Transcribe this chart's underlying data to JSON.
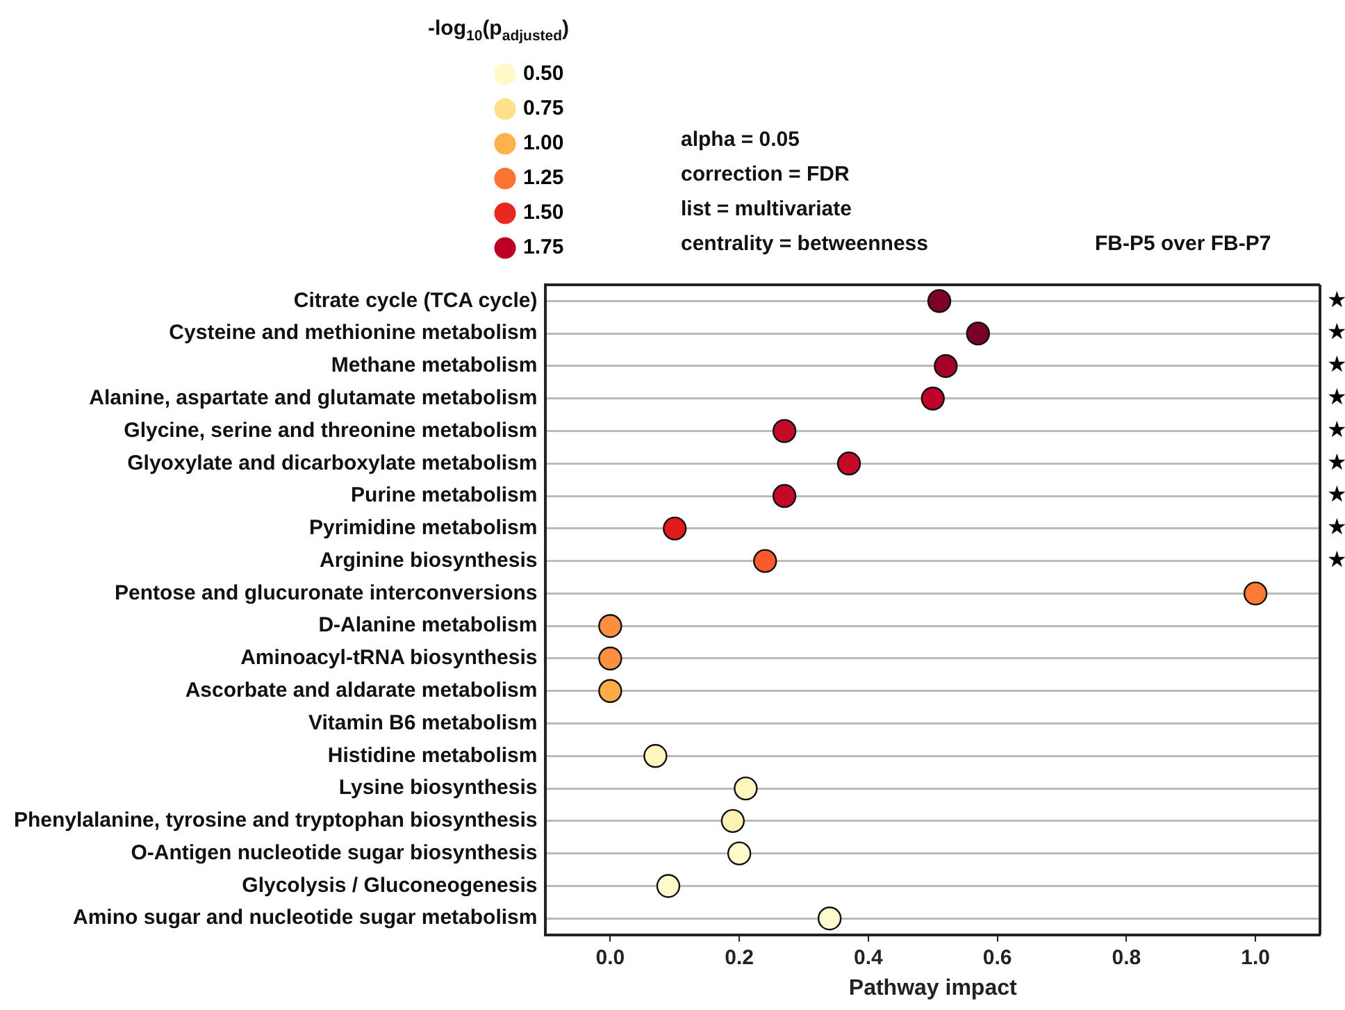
{
  "chart_data": {
    "type": "scatter",
    "title": "FB-P5 over FB-P7",
    "xlabel": "Pathway impact",
    "legend_title": "-log$_{10}$(p$_{adjusted}$)",
    "categories": [
      "Citrate cycle (TCA cycle)",
      "Cysteine and methionine metabolism",
      "Methane metabolism",
      "Alanine, aspartate and glutamate metabolism",
      "Glycine, serine and threonine metabolism",
      "Glyoxylate and dicarboxylate metabolism",
      "Purine metabolism",
      "Pyrimidine metabolism",
      "Arginine biosynthesis",
      "Pentose and glucuronate interconversions",
      "D-Alanine metabolism",
      "Aminoacyl-tRNA biosynthesis",
      "Ascorbate and aldarate metabolism",
      "Vitamin B6 metabolism",
      "Histidine metabolism",
      "Lysine biosynthesis",
      "Phenylalanine, tyrosine and tryptophan biosynthesis",
      "O-Antigen nucleotide sugar biosynthesis",
      "Glycolysis / Gluconeogenesis",
      "Amino sugar and nucleotide sugar metabolism"
    ],
    "orientation": "horizontal",
    "series": [
      {
        "name": "0.50",
        "color": "#fff8c8",
        "values": [
          null,
          null,
          null,
          null,
          null,
          null,
          null,
          null,
          null,
          null,
          null,
          null,
          null,
          null,
          0.07,
          0.21,
          0.19,
          0.2,
          0.09,
          0.34
        ],
        "colors": [
          null,
          null,
          null,
          null,
          null,
          null,
          null,
          null,
          null,
          null,
          null,
          null,
          null,
          null,
          "#fff5bf",
          "#fff5bf",
          "#fff2b5",
          "#fffbcc",
          "#fffbcc",
          "#fffdd0"
        ]
      },
      {
        "name": "0.75",
        "color": "#fee08b",
        "values": [
          null,
          null,
          null,
          null,
          null,
          null,
          null,
          null,
          null,
          null,
          null,
          null,
          null,
          null,
          null,
          null,
          null,
          null,
          null,
          null
        ]
      },
      {
        "name": "1.00",
        "color": "#feb14c",
        "values": [
          null,
          null,
          null,
          null,
          null,
          null,
          null,
          null,
          null,
          null,
          0,
          0,
          0,
          null,
          null,
          null,
          null,
          null,
          null,
          null
        ],
        "colors": [
          null,
          null,
          null,
          null,
          null,
          null,
          null,
          null,
          null,
          null,
          "#fd9040",
          "#fd9040",
          "#feab4a",
          null,
          null,
          null,
          null,
          null,
          null,
          null
        ]
      },
      {
        "name": "1.25",
        "color": "#fd7434",
        "values": [
          null,
          null,
          null,
          null,
          null,
          null,
          null,
          null,
          0.24,
          1.0,
          null,
          null,
          null,
          null,
          null,
          null,
          null,
          null,
          null,
          null
        ],
        "colors": [
          null,
          null,
          null,
          null,
          null,
          null,
          null,
          null,
          "#fc5a2a",
          "#fd7a35",
          null,
          null,
          null,
          null,
          null,
          null,
          null,
          null,
          null,
          null
        ]
      },
      {
        "name": "1.50",
        "color": "#e8291f",
        "values": [
          null,
          null,
          null,
          null,
          null,
          null,
          null,
          0.1,
          null,
          null,
          null,
          null,
          null,
          null,
          null,
          null,
          null,
          null,
          null,
          null
        ],
        "colors": [
          null,
          null,
          null,
          null,
          null,
          null,
          null,
          "#e31a1c",
          null,
          null,
          null,
          null,
          null,
          null,
          null,
          null,
          null,
          null,
          null,
          null
        ]
      },
      {
        "name": "1.75",
        "color": "#bd0026",
        "values": [
          0.51,
          0.57,
          0.52,
          0.5,
          0.27,
          0.37,
          0.27,
          null,
          null,
          null,
          null,
          null,
          null,
          null,
          null,
          null,
          null,
          null,
          null,
          null
        ],
        "colors": [
          "#800026",
          "#7a0025",
          "#a3002a",
          "#c0002a",
          "#c40a28",
          "#c40a28",
          "#c40a28",
          null,
          null,
          null,
          null,
          null,
          null,
          null,
          null,
          null,
          null,
          null,
          null,
          null
        ]
      }
    ],
    "xlim": [
      -0.1,
      1.1
    ],
    "xticks": [
      {
        "value": 0,
        "label": "0.0"
      },
      0.2,
      0.4,
      0.6,
      0.8,
      {
        "value": 1,
        "label": "1.0"
      }
    ],
    "grid": "y",
    "marker": "circle",
    "legend": "top",
    "annotations": [
      "alpha = 0.05",
      "correction = FDR",
      "list = multivariate",
      "centrality = betweenness",
      "★",
      "★",
      "★",
      "★",
      "★",
      "★",
      "★",
      "★",
      "★"
    ]
  }
}
